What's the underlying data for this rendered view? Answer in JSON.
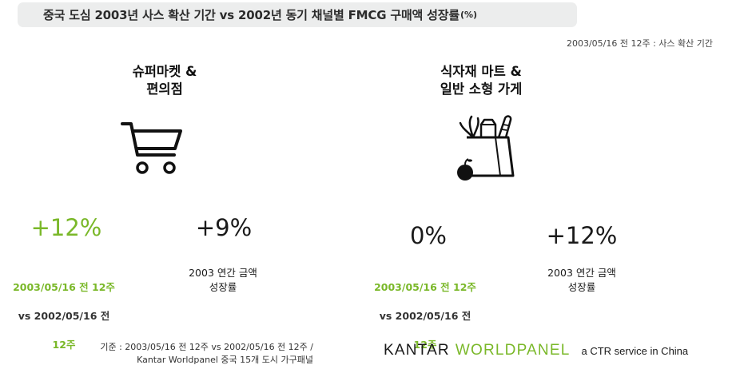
{
  "header": {
    "title": "중국 도심 2003년 사스 확산 기간 vs 2002년 동기 채널별 FMCG 구매액 성장률",
    "unit": "(%)",
    "period_note": "2003/05/16 전 12주 : 사스 확산 기간"
  },
  "chart_data": {
    "type": "table",
    "title": "중국 도심 2003년 사스 확산 기간 vs 2002년 동기 채널별 FMCG 구매액 성장률(%)",
    "columns": [
      "2003/05/16 전 12주 vs 2002/05/16 전 12주",
      "2003 연간 금액 성장률"
    ],
    "rows": [
      {
        "channel": "슈퍼마켓 & 편의점",
        "sars_period_growth": "+12%",
        "annual_2003_growth": "+9%"
      },
      {
        "channel": "식자재 마트 & 일반 소형 가게",
        "sars_period_growth": "0%",
        "annual_2003_growth": "+12%"
      }
    ]
  },
  "channels": [
    {
      "name": "슈퍼마켓 &\n편의점",
      "icon": "shopping-cart-icon",
      "sars_value": "+12%",
      "sars_label_top": "2003/05/16 전 12주",
      "sars_label_vs": "vs 2002/05/16 전",
      "sars_label_bottom": "12주",
      "annual_value": "+9%",
      "annual_label": "2003 연간 금액\n성장률"
    },
    {
      "name": "식자재 마트 &\n일반 소형 가게",
      "icon": "grocery-bag-icon",
      "sars_value": "0%",
      "sars_label_top": "2003/05/16 전 12주",
      "sars_label_vs": "vs 2002/05/16 전",
      "sars_label_bottom": "12주",
      "annual_value": "+12%",
      "annual_label": "2003 연간 금액\n성장률"
    }
  ],
  "footer": {
    "source": "기준 : 2003/05/16 전 12주 vs 2002/05/16 전 12주 /\nKantar Worldpanel 중국 15개 도시 가구패널",
    "logo_kantar": "KANTAR",
    "logo_worldpanel": "WORLDPANEL",
    "logo_ctr": "a CTR service in China"
  },
  "colors": {
    "accent_green": "#7ab829",
    "title_bar_bg": "#eceded",
    "text_dark": "#1a1a1a"
  }
}
